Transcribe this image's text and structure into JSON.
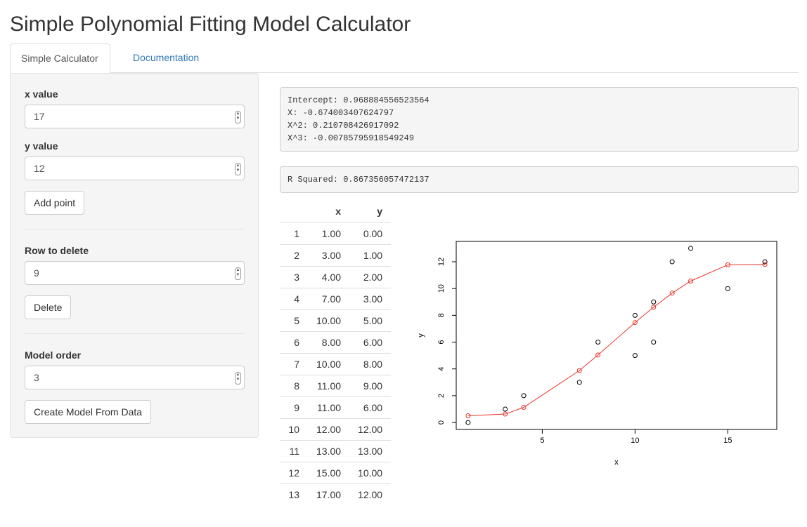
{
  "app": {
    "title": "Simple Polynomial Fitting Model Calculator"
  },
  "tabs": [
    {
      "label": "Simple Calculator",
      "active": true
    },
    {
      "label": "Documentation",
      "active": false
    }
  ],
  "sidebar": {
    "x_label": "x value",
    "x_value": "17",
    "y_label": "y value",
    "y_value": "12",
    "add_button": "Add point",
    "delete_label": "Row to delete",
    "delete_value": "9",
    "delete_button": "Delete",
    "order_label": "Model order",
    "order_value": "3",
    "create_button": "Create Model From Data"
  },
  "output": {
    "coef_lines": [
      "Intercept: 0.968884556523564",
      "X: -0.674003407624797",
      "X^2: 0.210708426917092",
      "X^3: -0.00785795918549249"
    ],
    "rsq": "R Squared: 0.867356057472137"
  },
  "table": {
    "headers": [
      "",
      "x",
      "y"
    ],
    "rows": [
      [
        "1",
        "1.00",
        "0.00"
      ],
      [
        "2",
        "3.00",
        "1.00"
      ],
      [
        "3",
        "4.00",
        "2.00"
      ],
      [
        "4",
        "7.00",
        "3.00"
      ],
      [
        "5",
        "10.00",
        "5.00"
      ],
      [
        "6",
        "8.00",
        "6.00"
      ],
      [
        "7",
        "10.00",
        "8.00"
      ],
      [
        "8",
        "11.00",
        "9.00"
      ],
      [
        "9",
        "11.00",
        "6.00"
      ],
      [
        "10",
        "12.00",
        "12.00"
      ],
      [
        "11",
        "13.00",
        "13.00"
      ],
      [
        "12",
        "15.00",
        "10.00"
      ],
      [
        "13",
        "17.00",
        "12.00"
      ]
    ]
  },
  "chart_data": {
    "type": "scatter",
    "title": "",
    "xlabel": "x",
    "ylabel": "y",
    "xlim": [
      0.36,
      17.64
    ],
    "ylim": [
      -0.52,
      13.52
    ],
    "xticks": [
      5,
      10,
      15
    ],
    "yticks": [
      0,
      2,
      4,
      6,
      8,
      10,
      12
    ],
    "grid": false,
    "series": [
      {
        "points": [
          [
            1,
            0
          ],
          [
            3,
            1
          ],
          [
            4,
            2
          ],
          [
            7,
            3
          ],
          [
            10,
            5
          ],
          [
            8,
            6
          ],
          [
            10,
            8
          ],
          [
            11,
            9
          ],
          [
            11,
            6
          ],
          [
            12,
            12
          ],
          [
            13,
            13
          ],
          [
            15,
            10
          ],
          [
            17,
            12
          ]
        ],
        "color": "#000000",
        "marker": "open-circle"
      },
      {
        "points": [
          [
            1,
            0.5
          ],
          [
            3,
            0.63
          ],
          [
            4,
            1.13
          ],
          [
            7,
            3.88
          ],
          [
            8,
            5.04
          ],
          [
            10,
            7.46
          ],
          [
            11,
            8.61
          ],
          [
            12,
            9.66
          ],
          [
            13,
            10.56
          ],
          [
            15,
            11.77
          ],
          [
            17,
            11.8
          ]
        ],
        "color": "#e8332a",
        "marker": "open-circle",
        "line": true
      }
    ]
  }
}
